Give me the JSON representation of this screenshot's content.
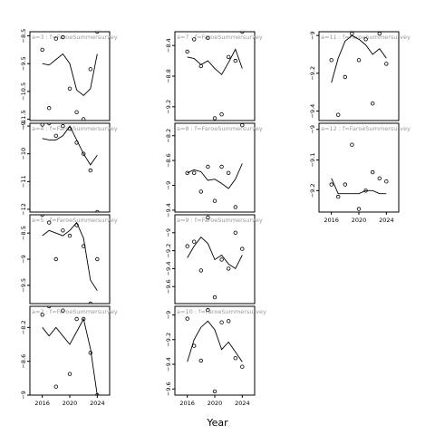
{
  "chart_data": {
    "type": "line",
    "xlabel": "Year",
    "xlim": [
      2014.2,
      2025.8
    ],
    "x_ticks": [
      2016,
      2020,
      2024
    ],
    "grid": false,
    "panels": [
      {
        "label": "a=3  :  f=FaroeSummersurvey",
        "col": 0,
        "row": 0,
        "ylim": [
          -11.55,
          -8.35
        ],
        "y_ticks": [
          -8.5,
          -9.5,
          -10.5,
          -11.5
        ],
        "x_axis": false,
        "line": {
          "x": [
            2016,
            2017,
            2018,
            2019,
            2020,
            2021,
            2022,
            2023,
            2024
          ],
          "y": [
            -9.5,
            -9.55,
            -9.35,
            -9.15,
            -9.5,
            -10.45,
            -10.65,
            -10.4,
            -9.15
          ]
        },
        "points": {
          "x": [
            2016,
            2017,
            2018,
            2019,
            2020,
            2021,
            2022,
            2023,
            2024
          ],
          "y": [
            -9.0,
            -11.1,
            -8.6,
            -8.55,
            -10.4,
            -11.25,
            -11.5,
            -9.7,
            -8.35
          ]
        }
      },
      {
        "label": "a=4  :  f=FaroeSummersurvey",
        "col": 0,
        "row": 1,
        "ylim": [
          -12.1,
          -8.9
        ],
        "y_ticks": [
          -9,
          -10,
          -11,
          -12
        ],
        "x_axis": false,
        "line": {
          "x": [
            2016,
            2017,
            2018,
            2019,
            2020,
            2021,
            2022,
            2023,
            2024
          ],
          "y": [
            -9.45,
            -9.5,
            -9.5,
            -9.35,
            -9.0,
            -9.5,
            -10.0,
            -10.4,
            -10.05
          ]
        },
        "points": {
          "x": [
            2016,
            2017,
            2018,
            2019,
            2020,
            2021,
            2022,
            2023,
            2024
          ],
          "y": [
            -8.95,
            -8.9,
            -9.35,
            -9.0,
            -9.1,
            -9.6,
            -10.0,
            -10.6,
            -12.1
          ]
        }
      },
      {
        "label": "a=5  :  f=FaroeSummersurvey",
        "col": 0,
        "row": 2,
        "ylim": [
          -9.85,
          -8.15
        ],
        "y_ticks": [
          -8.5,
          -9.0,
          -9.5
        ],
        "x_axis": false,
        "line": {
          "x": [
            2016,
            2017,
            2018,
            2019,
            2020,
            2021,
            2022,
            2023,
            2024
          ],
          "y": [
            -8.55,
            -8.45,
            -8.5,
            -8.55,
            -8.45,
            -8.3,
            -8.6,
            -9.4,
            -9.6
          ]
        },
        "points": {
          "x": [
            2016,
            2017,
            2018,
            2019,
            2020,
            2021,
            2022,
            2023,
            2024
          ],
          "y": [
            -8.15,
            -8.3,
            -9.0,
            -8.45,
            -8.55,
            -8.35,
            -8.75,
            -9.85,
            -9.0
          ]
        }
      },
      {
        "label": "a=2  :  f=FaroeSummersurvey",
        "col": 0,
        "row": 3,
        "ylim": [
          -9.0,
          -7.95
        ],
        "y_ticks": [
          -8.2,
          -8.6,
          -9.0
        ],
        "x_axis": true,
        "line": {
          "x": [
            2016,
            2017,
            2018,
            2019,
            2020,
            2021,
            2022,
            2023,
            2024
          ],
          "y": [
            -8.2,
            -8.3,
            -8.2,
            -8.3,
            -8.4,
            -8.25,
            -8.1,
            -8.45,
            -9.0
          ]
        },
        "points": {
          "x": [
            2016,
            2017,
            2018,
            2019,
            2020,
            2021,
            2022,
            2023,
            2024
          ],
          "y": [
            -8.05,
            -7.95,
            -8.9,
            -8.0,
            -8.75,
            -8.1,
            -8.1,
            -8.5,
            -9.0
          ]
        }
      },
      {
        "label": "a=7  :  f=FaroeSummersurvey",
        "col": 1,
        "row": 0,
        "ylim": [
          -9.38,
          -8.22
        ],
        "y_ticks": [
          -8.4,
          -8.8,
          -9.2
        ],
        "x_axis": false,
        "line": {
          "x": [
            2016,
            2017,
            2018,
            2019,
            2020,
            2021,
            2022,
            2023,
            2024
          ],
          "y": [
            -8.55,
            -8.57,
            -8.65,
            -8.6,
            -8.7,
            -8.78,
            -8.62,
            -8.45,
            -8.7
          ]
        },
        "points": {
          "x": [
            2016,
            2017,
            2018,
            2019,
            2020,
            2021,
            2022,
            2023,
            2024
          ],
          "y": [
            -8.48,
            -8.32,
            -8.67,
            -8.3,
            -9.35,
            -9.3,
            -8.55,
            -8.6,
            -8.22
          ]
        }
      },
      {
        "label": "a=8  :  f=FaroeSummersurvey",
        "col": 1,
        "row": 1,
        "ylim": [
          -9.43,
          -8.0
        ],
        "y_ticks": [
          -8.2,
          -8.6,
          -9.0,
          -9.4
        ],
        "x_axis": false,
        "line": {
          "x": [
            2016,
            2017,
            2018,
            2019,
            2020,
            2021,
            2022,
            2023,
            2024
          ],
          "y": [
            -8.8,
            -8.75,
            -8.78,
            -8.92,
            -8.9,
            -8.97,
            -9.05,
            -8.9,
            -8.65
          ]
        },
        "points": {
          "x": [
            2016,
            2017,
            2018,
            2019,
            2020,
            2021,
            2022,
            2023,
            2024
          ],
          "y": [
            -8.8,
            -8.8,
            -9.1,
            -8.7,
            -9.25,
            -8.7,
            -8.8,
            -9.35,
            -8.03
          ]
        }
      },
      {
        "label": "a=9  :  f=FaroeSummersurvey",
        "col": 1,
        "row": 2,
        "ylim": [
          -9.79,
          -8.8
        ],
        "y_ticks": [
          -9.0,
          -9.2,
          -9.4,
          -9.6
        ],
        "x_axis": false,
        "line": {
          "x": [
            2016,
            2017,
            2018,
            2019,
            2020,
            2021,
            2022,
            2023,
            2024
          ],
          "y": [
            -9.28,
            -9.15,
            -9.05,
            -9.12,
            -9.3,
            -9.25,
            -9.35,
            -9.4,
            -9.25
          ]
        },
        "points": {
          "x": [
            2016,
            2017,
            2018,
            2019,
            2020,
            2021,
            2022,
            2023,
            2024
          ],
          "y": [
            -9.15,
            -9.1,
            -9.42,
            -8.83,
            -9.72,
            -9.3,
            -9.4,
            -9.0,
            -9.18
          ]
        }
      },
      {
        "label": "a=10  :  f=FaroeSummersurvey",
        "col": 1,
        "row": 3,
        "ylim": [
          -9.65,
          -8.93
        ],
        "y_ticks": [
          -9.0,
          -9.2,
          -9.4,
          -9.6
        ],
        "x_axis": true,
        "line": {
          "x": [
            2016,
            2017,
            2018,
            2019,
            2020,
            2021,
            2022,
            2023,
            2024
          ],
          "y": [
            -9.38,
            -9.2,
            -9.1,
            -9.05,
            -9.12,
            -9.28,
            -9.22,
            -9.3,
            -9.38
          ]
        },
        "points": {
          "x": [
            2016,
            2017,
            2018,
            2019,
            2020,
            2021,
            2022,
            2023,
            2024
          ],
          "y": [
            -9.03,
            -9.25,
            -9.37,
            -8.96,
            -9.62,
            -9.06,
            -9.05,
            -9.35,
            -9.42
          ]
        }
      },
      {
        "label": "a=11  :  f=FaroeSummersurvey",
        "col": 2,
        "row": 0,
        "ylim": [
          -9.45,
          -8.98
        ],
        "y_ticks": [
          -9.0,
          -9.2,
          -9.4
        ],
        "x_axis": false,
        "line": {
          "x": [
            2016,
            2017,
            2018,
            2019,
            2020,
            2021,
            2022,
            2023,
            2024
          ],
          "y": [
            -9.25,
            -9.12,
            -9.03,
            -9.0,
            -9.02,
            -9.05,
            -9.1,
            -9.07,
            -9.12
          ]
        },
        "points": {
          "x": [
            2016,
            2017,
            2018,
            2019,
            2020,
            2021,
            2022,
            2023,
            2024
          ],
          "y": [
            -9.13,
            -9.42,
            -9.22,
            -8.99,
            -9.13,
            -9.02,
            -9.36,
            -8.99,
            -9.15
          ]
        }
      },
      {
        "label": "a=12  :  f=FaroeSummersurvey",
        "col": 2,
        "row": 1,
        "ylim": [
          -9.27,
          -8.98
        ],
        "y_ticks": [
          -9.0,
          -9.1,
          -9.2
        ],
        "x_axis": true,
        "line": {
          "x": [
            2016,
            2017,
            2018,
            2019,
            2020,
            2021,
            2022,
            2023,
            2024
          ],
          "y": [
            -9.16,
            -9.21,
            -9.21,
            -9.21,
            -9.21,
            -9.2,
            -9.2,
            -9.21,
            -9.21
          ]
        },
        "points": {
          "x": [
            2016,
            2017,
            2018,
            2019,
            2020,
            2021,
            2022,
            2023,
            2024
          ],
          "y": [
            -9.18,
            -9.22,
            -9.18,
            -9.05,
            -9.26,
            -9.2,
            -9.14,
            -9.16,
            -9.17
          ]
        }
      }
    ]
  }
}
